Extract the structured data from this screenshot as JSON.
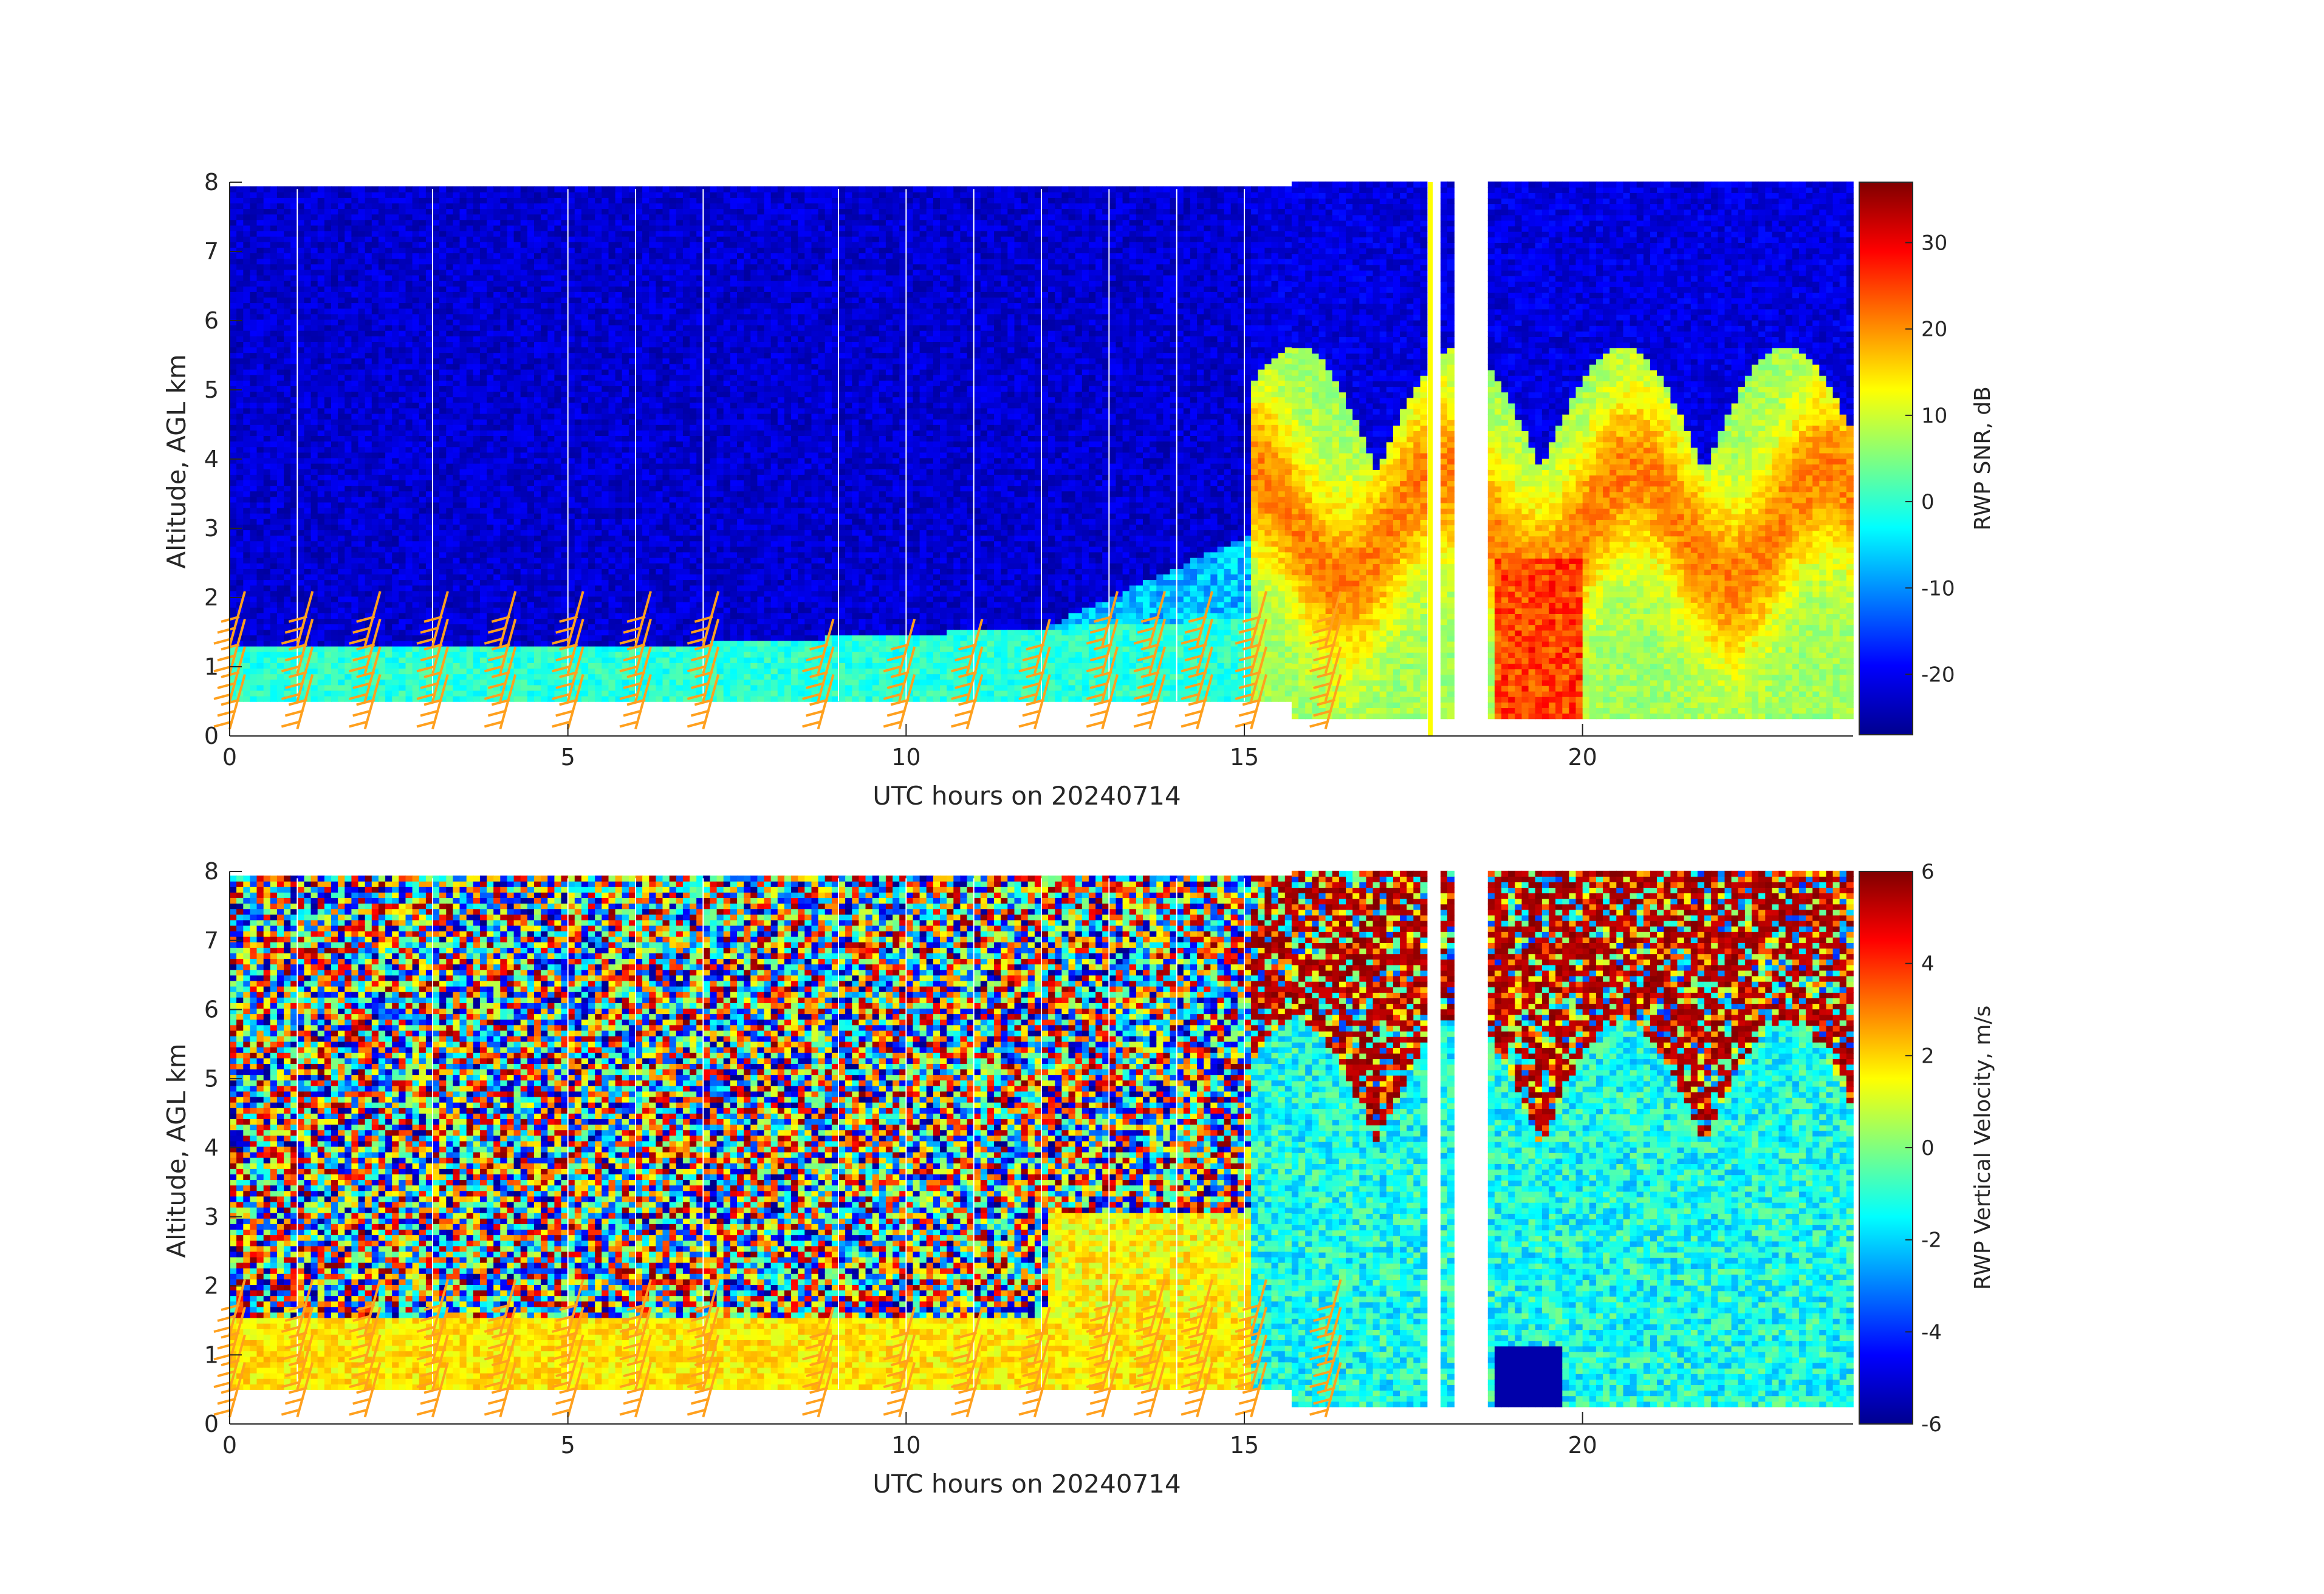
{
  "chart_data": [
    {
      "type": "heatmap",
      "panel": "top",
      "variable": "snr",
      "xlabel": "UTC hours on 20240714",
      "ylabel": "Altitude, AGL km",
      "xlim": [
        0,
        24
      ],
      "ylim": [
        0,
        8
      ],
      "xticks": [
        0,
        5,
        10,
        15,
        20
      ],
      "yticks": [
        0,
        1,
        2,
        3,
        4,
        5,
        6,
        7,
        8
      ],
      "colorbar": {
        "label": "RWP SNR, dB",
        "clim": [
          -27,
          37
        ],
        "ticks": [
          -20,
          -10,
          0,
          10,
          20,
          30
        ]
      },
      "overlay": "wind barbs (orange) at low altitudes",
      "marker_line": {
        "x": 17.75,
        "color": "#ffff00"
      }
    },
    {
      "type": "heatmap",
      "panel": "bottom",
      "variable": "vertical_velocity",
      "xlabel": "UTC hours on 20240714",
      "ylabel": "Altitude, AGL km",
      "xlim": [
        0,
        24
      ],
      "ylim": [
        0,
        8
      ],
      "xticks": [
        0,
        5,
        10,
        15,
        20
      ],
      "yticks": [
        0,
        1,
        2,
        3,
        4,
        5,
        6,
        7,
        8
      ],
      "colorbar": {
        "label": "RWP Vertical Velocity, m/s",
        "clim": [
          -6,
          6
        ],
        "ticks": [
          -6,
          -4,
          -2,
          0,
          2,
          4,
          6
        ]
      },
      "overlay": "wind barbs (orange) at low altitudes"
    }
  ],
  "colors": {
    "barb": "#ffa01e",
    "axis": "#262626",
    "gap": "#ffffff"
  }
}
